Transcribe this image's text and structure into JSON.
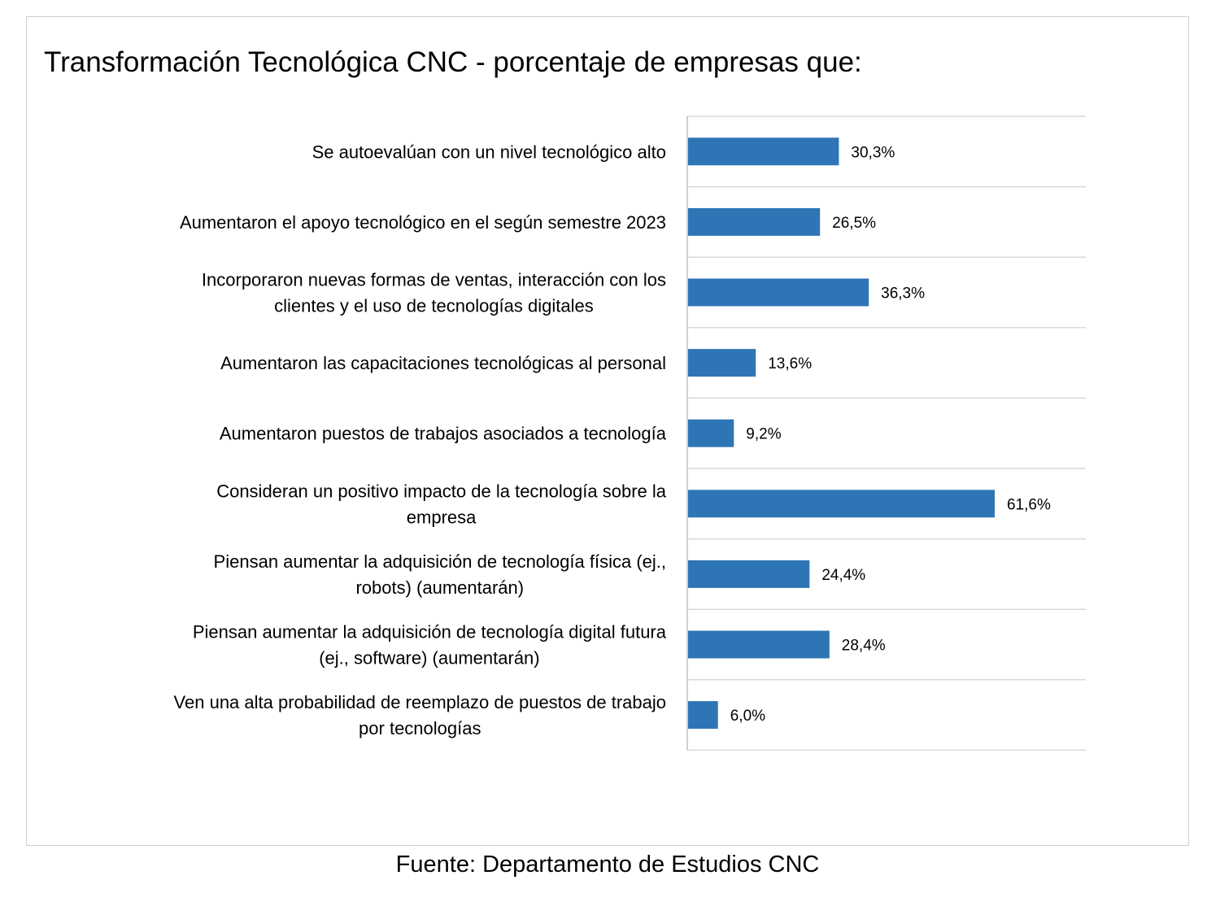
{
  "chart_data": {
    "type": "bar",
    "orientation": "horizontal",
    "title": "Transformación Tecnológica CNC - porcentaje de empresas que:",
    "categories": [
      [
        "Se autoevalúan con un nivel tecnológico alto"
      ],
      [
        "Aumentaron el apoyo tecnológico en el según semestre 2023"
      ],
      [
        "Incorporaron nuevas formas de ventas, interacción con los",
        "clientes y el uso de tecnologías digitales"
      ],
      [
        "Aumentaron las capacitaciones tecnológicas al personal"
      ],
      [
        "Aumentaron puestos de trabajos asociados a tecnología"
      ],
      [
        "Consideran un positivo impacto de la tecnología sobre la",
        "empresa"
      ],
      [
        "Piensan aumentar la adquisición de tecnología física  (ej.,",
        "robots) (aumentarán)"
      ],
      [
        "Piensan aumentar la adquisición  de tecnología digital futura",
        "(ej., software) (aumentarán)"
      ],
      [
        "Ven una alta probabilidad de reemplazo de puestos de trabajo",
        "por tecnologías"
      ]
    ],
    "values": [
      30.3,
      26.5,
      36.3,
      13.6,
      9.2,
      61.6,
      24.4,
      28.4,
      6.0
    ],
    "data_labels": [
      "30,3%",
      "26,5%",
      "36,3%",
      "13,6%",
      "9,2%",
      "61,6%",
      "24,4%",
      "28,4%",
      "6,0%"
    ],
    "xlim": [
      0,
      80
    ],
    "bar_color": "#2e75b6",
    "gridlines": "horizontal separators between categories",
    "legend": "none"
  },
  "source": "Fuente: Departamento de Estudios CNC"
}
